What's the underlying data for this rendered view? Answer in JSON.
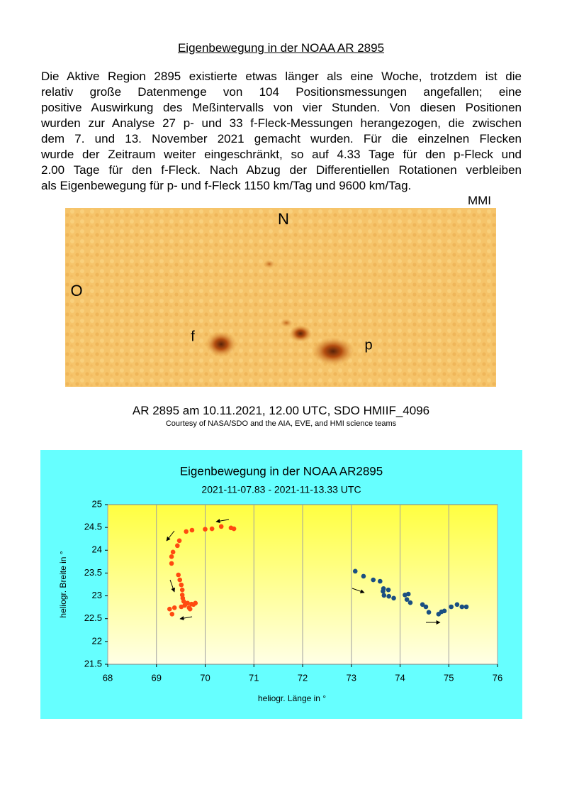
{
  "document": {
    "title": "Eigenbewegung in der NOAA AR 2895",
    "paragraph": [
      "Die Aktive Region 2895 existierte etwas länger als eine Woche, trotzdem ist die",
      "relativ große Datenmenge von 104 Positionsmessungen angefallen; eine",
      "positive Auswirkung des Meßintervalls von vier Stunden. Von diesen Positionen",
      "wurden zur Analyse 27 p- und 33 f-Fleck-Messungen herangezogen, die zwischen",
      "dem 7. und 13. November 2021 gemacht wurden. Für die einzelnen Flecken",
      "wurde der Zeitraum weiter eingeschränkt, so auf 4.33 Tage für den p-Fleck und",
      "2.00 Tage für den f-Fleck. Nach Abzug der Differentiellen Rotationen verbleiben",
      "als Eigenbewegung für p- und f-Fleck 1150 km/Tag und 9600 km/Tag."
    ],
    "source": "MMI",
    "image_labels": {
      "north": "N",
      "east": "O",
      "f": "f",
      "p": "p"
    },
    "caption": "AR 2895 am 10.11.2021, 12.00 UTC, SDO HMIIF_4096",
    "credit": "Courtesy of NASA/SDO and the AIA, EVE, and HMI science teams"
  },
  "chart_data": {
    "type": "scatter",
    "title": "Eigenbewegung in der NOAA  AR2895",
    "subtitle": "2021-11-07.83 - 2021-11-13.33 UTC",
    "xlabel": "heliogr. Länge in °",
    "ylabel": "heliogr. Breite in °",
    "xlim": [
      68,
      76
    ],
    "ylim": [
      21.5,
      25
    ],
    "xticks": [
      68,
      69,
      70,
      71,
      72,
      73,
      74,
      75,
      76
    ],
    "yticks": [
      21.5,
      22,
      22.5,
      23,
      23.5,
      24,
      24.5,
      25
    ],
    "grid": "x",
    "series": [
      {
        "color": "#ff4a10",
        "x": [
          70.53,
          70.59,
          70.33,
          70.14,
          70.0,
          69.73,
          69.61,
          69.47,
          69.43,
          69.34,
          69.31,
          69.31,
          69.45,
          69.48,
          69.51,
          69.53,
          69.53,
          69.54,
          69.56,
          69.6,
          69.64,
          69.72,
          69.76,
          69.8,
          69.51,
          69.58,
          69.67,
          69.37,
          69.27,
          69.32,
          69.69
        ],
        "values": [
          24.49,
          24.47,
          24.52,
          24.47,
          24.46,
          24.44,
          24.41,
          24.21,
          24.1,
          23.96,
          23.86,
          23.71,
          23.46,
          23.35,
          23.24,
          23.13,
          23.02,
          22.95,
          22.88,
          22.82,
          22.84,
          22.82,
          22.81,
          22.84,
          22.76,
          22.79,
          22.74,
          22.74,
          22.71,
          22.6,
          22.71
        ]
      },
      {
        "color": "#1a4f82",
        "x": [
          73.08,
          73.25,
          73.45,
          73.59,
          73.66,
          73.65,
          73.76,
          73.67,
          73.77,
          73.87,
          74.1,
          74.17,
          74.14,
          74.21,
          74.46,
          74.53,
          74.59,
          74.79,
          74.85,
          74.91,
          75.05,
          75.17,
          75.27,
          75.36
        ],
        "values": [
          23.54,
          23.43,
          23.35,
          23.32,
          23.16,
          23.1,
          23.13,
          23.01,
          22.99,
          22.95,
          23.02,
          23.04,
          22.92,
          22.85,
          22.81,
          22.76,
          22.64,
          22.6,
          22.65,
          22.67,
          22.76,
          22.81,
          22.76,
          22.76
        ]
      }
    ]
  }
}
